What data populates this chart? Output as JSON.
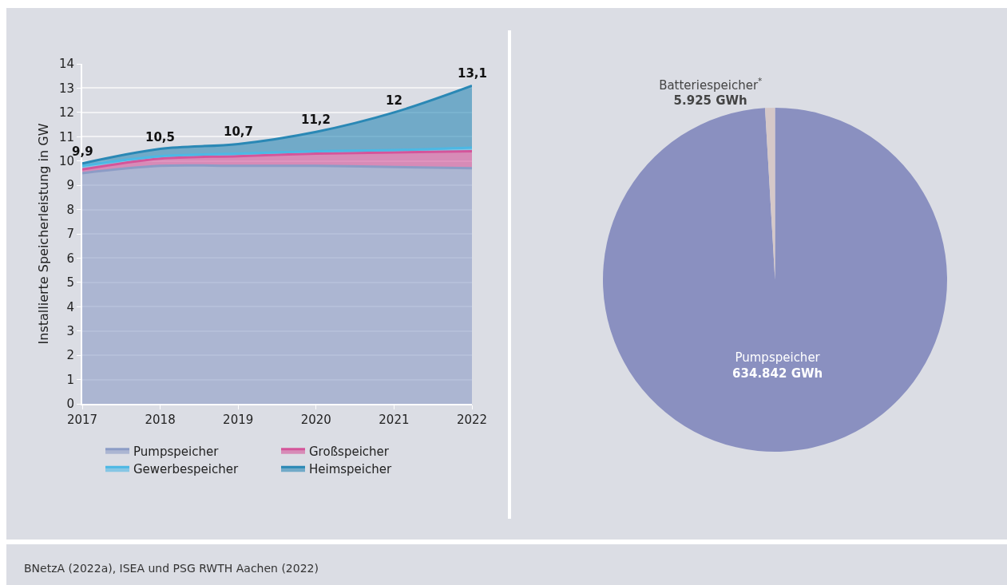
{
  "chart_data": [
    {
      "type": "area",
      "stacked": true,
      "x": [
        2017,
        2018,
        2019,
        2020,
        2021,
        2022
      ],
      "xlim": [
        2017,
        2022
      ],
      "xticks": [
        2017,
        2018,
        2019,
        2020,
        2021,
        2022
      ],
      "ylim": [
        0,
        14
      ],
      "yticks": [
        0,
        1,
        2,
        3,
        4,
        5,
        6,
        7,
        8,
        9,
        10,
        11,
        12,
        13,
        14
      ],
      "ylabel": "Installierte Speicherleistung in GW",
      "grid": "y",
      "legend": "bottom",
      "series": [
        {
          "name": "Pumpspeicher",
          "color": "#8c9cc6",
          "values": [
            9.5,
            9.8,
            9.8,
            9.8,
            9.75,
            9.7
          ]
        },
        {
          "name": "Großspeicher",
          "color": "#d4559a",
          "values": [
            0.15,
            0.3,
            0.4,
            0.5,
            0.6,
            0.7
          ]
        },
        {
          "name": "Gewerbespeicher",
          "color": "#4cb8e4",
          "values": [
            0.15,
            0.1,
            0.1,
            0.1,
            0.1,
            0.15
          ]
        },
        {
          "name": "Heimspeicher",
          "color": "#2a88b5",
          "values": [
            0.1,
            0.3,
            0.4,
            0.8,
            1.55,
            2.55
          ]
        }
      ],
      "totals": [
        "9,9",
        "10,5",
        "10,7",
        "11,2",
        "12",
        "13,1"
      ],
      "annotations": [
        "BNetzA (2022a), ISEA und PSG RWTH Aachen (2022)"
      ]
    },
    {
      "type": "pie",
      "categories": [
        "Pumpspeicher",
        "Batteriespeicher$^{*}$"
      ],
      "values": [
        634842,
        5925
      ],
      "colors": [
        "#8a90c0",
        "#d5c8c8"
      ],
      "value_labels": [
        "634.842 GWh",
        "5.925 GWh"
      ],
      "legend": false
    }
  ]
}
